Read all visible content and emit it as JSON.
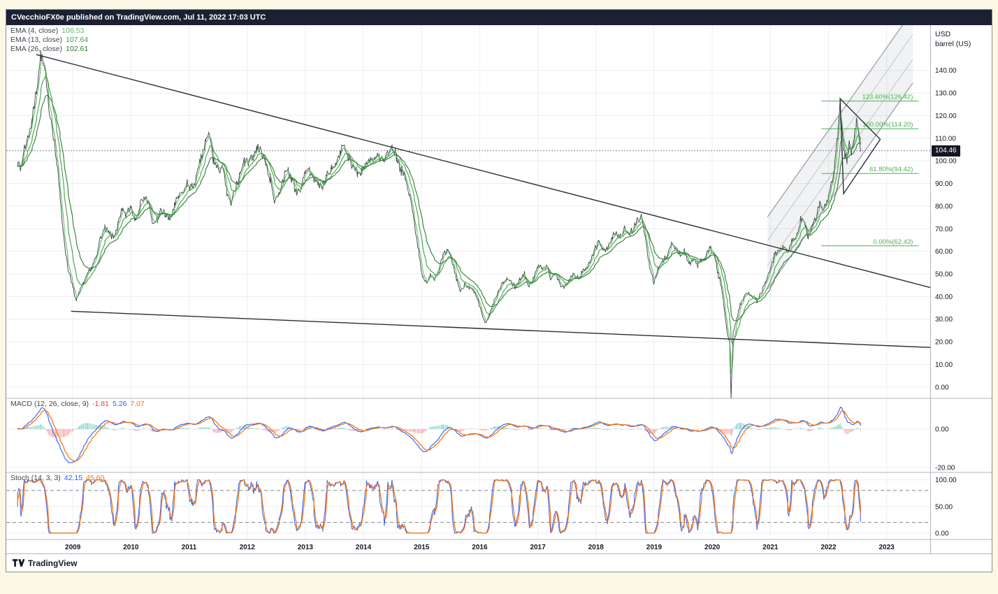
{
  "page": {
    "background": "#fbf8e5"
  },
  "header": {
    "title": "CVecchioFX0e published on TradingView.com, Jul 11, 2022 17:03 UTC"
  },
  "footer": {
    "brand": "TradingView"
  },
  "price_axis": {
    "unit_line1": "USD",
    "unit_line2": "barrel (US)",
    "last_price": "104.46"
  },
  "legends": {
    "ema": [
      {
        "label": "EMA (4, close)",
        "value": "106.53",
        "color": "#66bb6a"
      },
      {
        "label": "EMA (13, close)",
        "value": "107.64",
        "color": "#43a047"
      },
      {
        "label": "EMA (26, close)",
        "value": "102.61",
        "color": "#2e7d32"
      }
    ],
    "macd": {
      "label": "MACD (12, 26, close, 9)",
      "values": [
        {
          "text": "-1.81",
          "color": "#f23645"
        },
        {
          "text": "5.26",
          "color": "#2962ff"
        },
        {
          "text": "7.07",
          "color": "#ff6d00"
        }
      ]
    },
    "stoch": {
      "label": "Stoch (14, 3, 3)",
      "values": [
        {
          "text": "42.15",
          "color": "#2962ff"
        },
        {
          "text": "45.60",
          "color": "#ff6d00"
        }
      ]
    }
  },
  "chart_data": [
    {
      "type": "line",
      "name": "crude-oil-weekly-price",
      "ylabel": "USD barrel (US)",
      "xlim": [
        2008.0,
        2023.75
      ],
      "ylim": [
        -5,
        160
      ],
      "yticks": [
        0,
        10,
        20,
        30,
        40,
        50,
        60,
        70,
        80,
        90,
        100,
        110,
        120,
        130,
        140
      ],
      "x_year_labels": [
        2009,
        2010,
        2011,
        2012,
        2013,
        2014,
        2015,
        2016,
        2017,
        2018,
        2019,
        2020,
        2021,
        2022,
        2023
      ],
      "last_price": 104.46,
      "emas": [
        {
          "period": 4,
          "color": "#66bb6a"
        },
        {
          "period": 13,
          "color": "#43a047"
        },
        {
          "period": 26,
          "color": "#2e7d32"
        }
      ],
      "overlays": {
        "trendlines": [
          [
            [
              2008.37,
              147
            ],
            [
              2023.75,
              44
            ]
          ],
          [
            [
              2008.97,
              33.5
            ],
            [
              2023.75,
              17.5
            ]
          ]
        ],
        "channel": {
          "x0": 2020.95,
          "x1": 2023.45,
          "t_ref": 2021.0,
          "base_start": 45,
          "slope": 36.5,
          "width": 32,
          "inner": [
            10.5,
            21.5
          ],
          "color": "#8c8f99"
        },
        "triangle": [
          [
            2022.2,
            127.5
          ],
          [
            2022.26,
            85.5
          ],
          [
            2022.89,
            109.5
          ]
        ],
        "fib": {
          "x0": 2021.88,
          "x1": 2023.55,
          "color": "#4caf50",
          "levels": [
            {
              "label": "123.60%(126.42)",
              "value": 126.42
            },
            {
              "label": "100.00%(114.20)",
              "value": 114.2
            },
            {
              "label": "61.80%(94.42)",
              "value": 94.42
            },
            {
              "label": "0.00%(62.43)",
              "value": 62.43
            }
          ]
        }
      },
      "anchors": [
        [
          2008.05,
          100
        ],
        [
          2008.1,
          96
        ],
        [
          2008.16,
          105
        ],
        [
          2008.22,
          110
        ],
        [
          2008.3,
          118
        ],
        [
          2008.38,
          132
        ],
        [
          2008.45,
          147
        ],
        [
          2008.52,
          140
        ],
        [
          2008.58,
          125
        ],
        [
          2008.65,
          115
        ],
        [
          2008.72,
          100
        ],
        [
          2008.78,
          85
        ],
        [
          2008.85,
          65
        ],
        [
          2008.92,
          52
        ],
        [
          2009.0,
          44
        ],
        [
          2009.06,
          38
        ],
        [
          2009.12,
          42
        ],
        [
          2009.18,
          46
        ],
        [
          2009.25,
          50
        ],
        [
          2009.32,
          52
        ],
        [
          2009.4,
          58
        ],
        [
          2009.48,
          66
        ],
        [
          2009.55,
          70
        ],
        [
          2009.62,
          68
        ],
        [
          2009.7,
          66
        ],
        [
          2009.78,
          72
        ],
        [
          2009.85,
          78
        ],
        [
          2009.92,
          76
        ],
        [
          2010.0,
          80
        ],
        [
          2010.07,
          74
        ],
        [
          2010.15,
          80
        ],
        [
          2010.22,
          84
        ],
        [
          2010.3,
          82
        ],
        [
          2010.37,
          72
        ],
        [
          2010.45,
          74
        ],
        [
          2010.52,
          78
        ],
        [
          2010.6,
          76
        ],
        [
          2010.67,
          74
        ],
        [
          2010.75,
          80
        ],
        [
          2010.82,
          84
        ],
        [
          2010.9,
          86
        ],
        [
          2010.97,
          90
        ],
        [
          2011.05,
          88
        ],
        [
          2011.12,
          92
        ],
        [
          2011.2,
          100
        ],
        [
          2011.28,
          108
        ],
        [
          2011.35,
          112
        ],
        [
          2011.42,
          100
        ],
        [
          2011.5,
          96
        ],
        [
          2011.57,
          98
        ],
        [
          2011.65,
          86
        ],
        [
          2011.72,
          80
        ],
        [
          2011.8,
          88
        ],
        [
          2011.87,
          94
        ],
        [
          2011.95,
          100
        ],
        [
          2012.02,
          100
        ],
        [
          2012.1,
          102
        ],
        [
          2012.17,
          106
        ],
        [
          2012.25,
          104
        ],
        [
          2012.32,
          98
        ],
        [
          2012.4,
          92
        ],
        [
          2012.47,
          82
        ],
        [
          2012.55,
          86
        ],
        [
          2012.62,
          92
        ],
        [
          2012.7,
          96
        ],
        [
          2012.77,
          92
        ],
        [
          2012.85,
          86
        ],
        [
          2012.92,
          88
        ],
        [
          2013.0,
          94
        ],
        [
          2013.07,
          96
        ],
        [
          2013.15,
          92
        ],
        [
          2013.22,
          90
        ],
        [
          2013.3,
          88
        ],
        [
          2013.37,
          94
        ],
        [
          2013.45,
          96
        ],
        [
          2013.52,
          98
        ],
        [
          2013.6,
          104
        ],
        [
          2013.67,
          106
        ],
        [
          2013.75,
          102
        ],
        [
          2013.82,
          98
        ],
        [
          2013.9,
          94
        ],
        [
          2013.97,
          96
        ],
        [
          2014.05,
          98
        ],
        [
          2014.12,
          100
        ],
        [
          2014.2,
          100
        ],
        [
          2014.27,
          102
        ],
        [
          2014.35,
          100
        ],
        [
          2014.42,
          104
        ],
        [
          2014.5,
          106
        ],
        [
          2014.57,
          102
        ],
        [
          2014.65,
          96
        ],
        [
          2014.72,
          92
        ],
        [
          2014.8,
          84
        ],
        [
          2014.87,
          74
        ],
        [
          2014.95,
          60
        ],
        [
          2015.02,
          48
        ],
        [
          2015.08,
          46
        ],
        [
          2015.15,
          50
        ],
        [
          2015.22,
          48
        ],
        [
          2015.3,
          52
        ],
        [
          2015.37,
          58
        ],
        [
          2015.45,
          60
        ],
        [
          2015.52,
          56
        ],
        [
          2015.6,
          48
        ],
        [
          2015.67,
          42
        ],
        [
          2015.75,
          46
        ],
        [
          2015.82,
          44
        ],
        [
          2015.9,
          42
        ],
        [
          2015.97,
          38
        ],
        [
          2016.04,
          32
        ],
        [
          2016.1,
          28
        ],
        [
          2016.17,
          32
        ],
        [
          2016.25,
          38
        ],
        [
          2016.32,
          42
        ],
        [
          2016.4,
          46
        ],
        [
          2016.47,
          48
        ],
        [
          2016.55,
          46
        ],
        [
          2016.62,
          44
        ],
        [
          2016.7,
          48
        ],
        [
          2016.77,
          50
        ],
        [
          2016.85,
          44
        ],
        [
          2016.92,
          48
        ],
        [
          2017.0,
          54
        ],
        [
          2017.07,
          52
        ],
        [
          2017.15,
          54
        ],
        [
          2017.22,
          48
        ],
        [
          2017.3,
          50
        ],
        [
          2017.37,
          46
        ],
        [
          2017.45,
          44
        ],
        [
          2017.52,
          46
        ],
        [
          2017.6,
          50
        ],
        [
          2017.67,
          48
        ],
        [
          2017.75,
          50
        ],
        [
          2017.82,
          52
        ],
        [
          2017.9,
          56
        ],
        [
          2017.97,
          60
        ],
        [
          2018.05,
          64
        ],
        [
          2018.12,
          60
        ],
        [
          2018.2,
          62
        ],
        [
          2018.27,
          66
        ],
        [
          2018.35,
          68
        ],
        [
          2018.42,
          66
        ],
        [
          2018.5,
          70
        ],
        [
          2018.57,
          68
        ],
        [
          2018.65,
          70
        ],
        [
          2018.72,
          74
        ],
        [
          2018.77,
          76
        ],
        [
          2018.85,
          66
        ],
        [
          2018.92,
          54
        ],
        [
          2019.0,
          46
        ],
        [
          2019.07,
          52
        ],
        [
          2019.15,
          56
        ],
        [
          2019.22,
          58
        ],
        [
          2019.3,
          64
        ],
        [
          2019.37,
          62
        ],
        [
          2019.45,
          58
        ],
        [
          2019.52,
          60
        ],
        [
          2019.6,
          54
        ],
        [
          2019.67,
          56
        ],
        [
          2019.75,
          54
        ],
        [
          2019.82,
          56
        ],
        [
          2019.9,
          58
        ],
        [
          2019.97,
          62
        ],
        [
          2020.04,
          58
        ],
        [
          2020.1,
          50
        ],
        [
          2020.16,
          44
        ],
        [
          2020.22,
          32
        ],
        [
          2020.26,
          24
        ],
        [
          2020.3,
          20
        ],
        [
          2020.325,
          -5
        ],
        [
          2020.36,
          24
        ],
        [
          2020.42,
          30
        ],
        [
          2020.48,
          36
        ],
        [
          2020.55,
          40
        ],
        [
          2020.62,
          42
        ],
        [
          2020.7,
          40
        ],
        [
          2020.77,
          38
        ],
        [
          2020.85,
          42
        ],
        [
          2020.92,
          46
        ],
        [
          2021.0,
          52
        ],
        [
          2021.07,
          58
        ],
        [
          2021.15,
          60
        ],
        [
          2021.22,
          62
        ],
        [
          2021.3,
          60
        ],
        [
          2021.37,
          64
        ],
        [
          2021.45,
          66
        ],
        [
          2021.52,
          74
        ],
        [
          2021.6,
          72
        ],
        [
          2021.65,
          66
        ],
        [
          2021.72,
          72
        ],
        [
          2021.8,
          76
        ],
        [
          2021.85,
          82
        ],
        [
          2021.92,
          78
        ],
        [
          2022.0,
          84
        ],
        [
          2022.05,
          90
        ],
        [
          2022.1,
          95
        ],
        [
          2022.16,
          112
        ],
        [
          2022.2,
          125
        ],
        [
          2022.24,
          112
        ],
        [
          2022.28,
          103
        ],
        [
          2022.32,
          100
        ],
        [
          2022.36,
          108
        ],
        [
          2022.4,
          103
        ],
        [
          2022.44,
          110
        ],
        [
          2022.48,
          118
        ],
        [
          2022.52,
          112
        ],
        [
          2022.55,
          104.46
        ]
      ]
    },
    {
      "type": "line",
      "name": "macd",
      "label": "MACD (12, 26, close, 9)",
      "params": {
        "fast": 12,
        "slow": 26,
        "source": "close",
        "signal": 9
      },
      "ylim": [
        -22.5,
        16
      ],
      "yticks": [
        0,
        -20
      ],
      "current": {
        "histogram": -1.81,
        "macd": 5.26,
        "signal": 7.07
      },
      "colors": {
        "macd": "#2962ff",
        "signal": "#ff6d00",
        "hist_pos": "#26a69a",
        "hist_neg": "#ef5350"
      }
    },
    {
      "type": "line",
      "name": "stochastic",
      "label": "Stoch (14, 3, 3)",
      "params": {
        "k": 14,
        "k_smoothing": 3,
        "d": 3
      },
      "ylim": [
        -12,
        114
      ],
      "yticks": [
        100,
        50,
        0
      ],
      "bands": [
        80,
        20
      ],
      "current": {
        "k": 42.15,
        "d": 45.6
      },
      "colors": {
        "k": "#2962ff",
        "d": "#ff6d00"
      }
    }
  ]
}
